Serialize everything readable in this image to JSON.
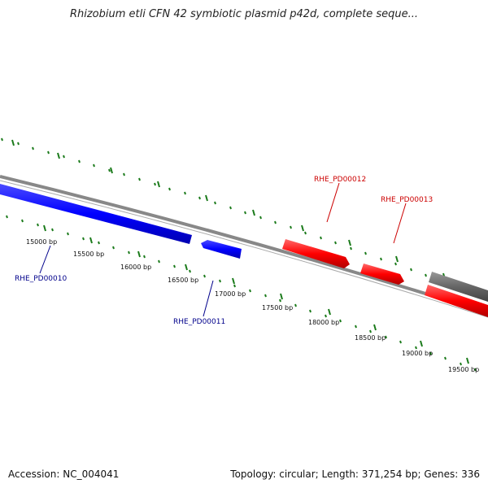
{
  "title": "Rhizobium etli CFN 42 symbiotic plasmid p42d, complete seque...",
  "footer": {
    "accession": "Accession: NC_004041",
    "summary": "Topology: circular; Length: 371,254 bp; Genes: 336"
  },
  "ticks": [
    {
      "label": "15000 bp"
    },
    {
      "label": "15500 bp"
    },
    {
      "label": "16000 bp"
    },
    {
      "label": "16500 bp"
    },
    {
      "label": "17000 bp"
    },
    {
      "label": "17500 bp"
    },
    {
      "label": "18000 bp"
    },
    {
      "label": "18500 bp"
    },
    {
      "label": "19000 bp"
    },
    {
      "label": "19500 bp"
    }
  ],
  "genes": [
    {
      "label": "RHE_PD00010",
      "color": "#00008b"
    },
    {
      "label": "RHE_PD00011",
      "color": "#00008b"
    },
    {
      "label": "RHE_PD00012",
      "color": "#cc0000"
    },
    {
      "label": "RHE_PD00013",
      "color": "#cc0000"
    }
  ],
  "colors": {
    "forward_gene": "#ff0000",
    "reverse_gene": "#0000ff",
    "other_gene": "#666666",
    "ticks": "#1a7a1a",
    "backbone": "#888888"
  }
}
